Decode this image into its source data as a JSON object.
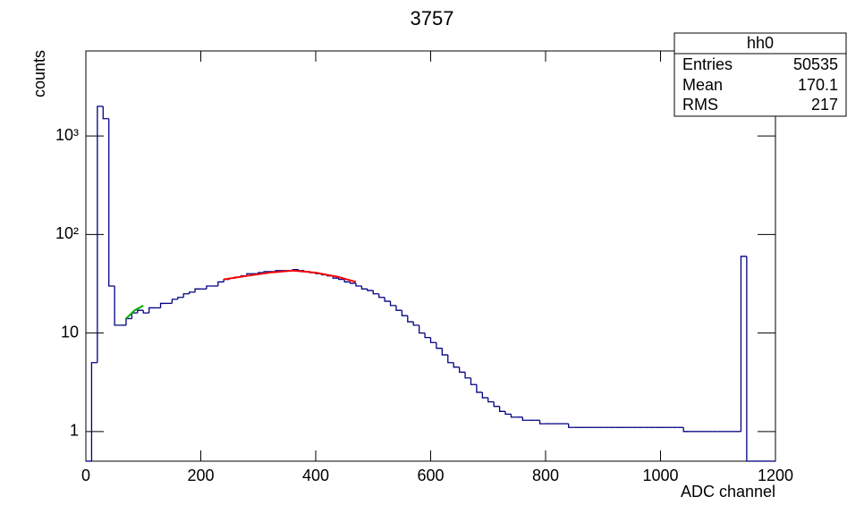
{
  "chart_data": {
    "type": "histogram",
    "title": "3757",
    "x_label": "ADC channel",
    "y_label": "counts",
    "log_y": true,
    "color": "#000080",
    "xlim": [
      0,
      1200
    ],
    "xticks": [
      0,
      200,
      400,
      600,
      800,
      1000,
      1200
    ],
    "ylim": [
      0.5,
      7300
    ],
    "yticks": [
      1,
      10,
      {
        "value": 100,
        "label": "10²"
      },
      {
        "value": 1000,
        "label": "10³"
      }
    ],
    "bins": [
      0,
      10,
      20,
      30,
      40,
      50,
      60,
      70,
      80,
      90,
      100,
      110,
      120,
      130,
      140,
      150,
      160,
      170,
      180,
      190,
      200,
      210,
      220,
      230,
      240,
      250,
      260,
      270,
      280,
      290,
      300,
      310,
      320,
      330,
      340,
      350,
      360,
      370,
      380,
      390,
      400,
      410,
      420,
      430,
      440,
      450,
      460,
      470,
      480,
      490,
      500,
      510,
      520,
      530,
      540,
      550,
      560,
      570,
      580,
      590,
      600,
      610,
      620,
      630,
      640,
      650,
      660,
      670,
      680,
      690,
      700,
      710,
      720,
      730,
      740,
      750,
      760,
      770,
      780,
      790,
      800,
      810,
      820,
      830,
      840,
      850,
      860,
      870,
      880,
      890,
      900,
      910,
      920,
      930,
      940,
      950,
      960,
      970,
      980,
      990,
      1000,
      1010,
      1020,
      1030,
      1040,
      1050,
      1060,
      1070,
      1080,
      1090,
      1100,
      1110,
      1120,
      1130,
      1140,
      1150,
      1160,
      1170,
      1180,
      1190,
      1200
    ],
    "counts": [
      0,
      5,
      2000,
      1500,
      30,
      12,
      12,
      14,
      16,
      17,
      16,
      18,
      18,
      20,
      20,
      22,
      23,
      25,
      26,
      28,
      28,
      30,
      30,
      33,
      35,
      36,
      37,
      38,
      40,
      40,
      41,
      42,
      42,
      43,
      43,
      43,
      44,
      43,
      42,
      41,
      40,
      39,
      38,
      36,
      35,
      33,
      32,
      30,
      28,
      27,
      25,
      23,
      21,
      19,
      17,
      15,
      13,
      12,
      10,
      9,
      8,
      7,
      6,
      5,
      4.5,
      4,
      3.5,
      3,
      2.5,
      2.2,
      2,
      1.8,
      1.6,
      1.5,
      1.4,
      1.4,
      1.3,
      1.3,
      1.3,
      1.2,
      1.2,
      1.2,
      1.2,
      1.2,
      1.1,
      1.1,
      1.1,
      1.1,
      1.1,
      1.1,
      1.1,
      1.1,
      1.1,
      1.1,
      1.1,
      1.1,
      1.1,
      1.1,
      1.1,
      1.1,
      1.1,
      1.1,
      1.1,
      1.1,
      1,
      1,
      1,
      1,
      1,
      1,
      1,
      1,
      1,
      1,
      60,
      0,
      0,
      0,
      0,
      0
    ],
    "fits": [
      {
        "color": "#ff0000",
        "x": [
          240,
          280,
          320,
          360,
          400,
          440,
          470
        ],
        "values": [
          35,
          38,
          41,
          43,
          41,
          37,
          33
        ]
      },
      {
        "color": "#00aa00",
        "x": [
          70,
          85,
          100
        ],
        "values": [
          14,
          17,
          19
        ]
      }
    ],
    "stats_box": {
      "title": "hh0",
      "rows": [
        [
          "Entries",
          "50535"
        ],
        [
          "Mean",
          "170.1"
        ],
        [
          "RMS",
          "217"
        ]
      ]
    }
  }
}
